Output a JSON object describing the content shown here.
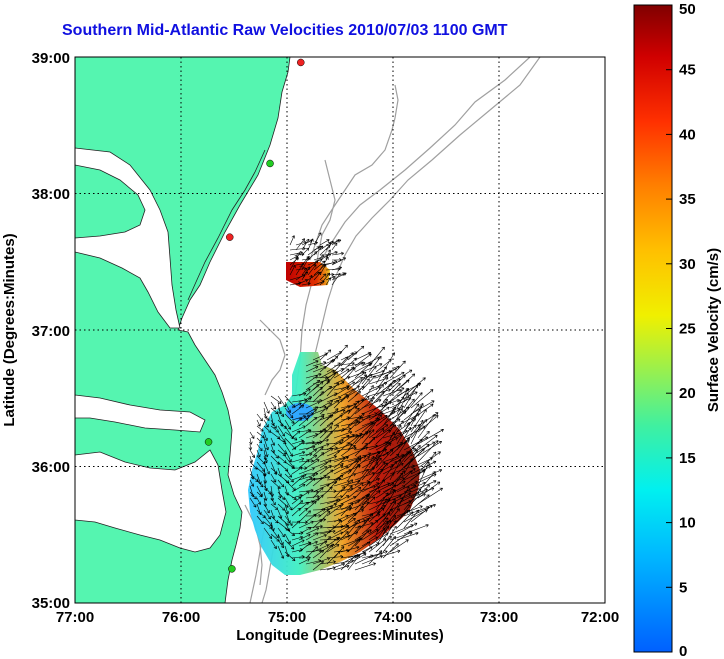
{
  "title": "Southern Mid-Atlantic Raw Velocities 2010/07/03 1100 GMT",
  "axes": {
    "x_label": "Longitude (Degrees:Minutes)",
    "y_label": "Latitude (Degrees:Minutes)",
    "x_ticks": [
      "77:00",
      "76:00",
      "75:00",
      "74:00",
      "73:00",
      "72:00"
    ],
    "y_ticks": [
      "39:00",
      "38:00",
      "37:00",
      "36:00",
      "35:00"
    ]
  },
  "colorbar": {
    "label": "Surface Velocity (cm/s)",
    "ticks": [
      "0",
      "5",
      "10",
      "15",
      "20",
      "25",
      "30",
      "35",
      "40",
      "45",
      "50"
    ],
    "min": 0,
    "max": 50
  },
  "colors": {
    "land": "#55f5b0",
    "title": "#1010e0",
    "contour": "#a0a0a0",
    "station_green": "#22cc22",
    "station_red": "#ee2222"
  },
  "extent": {
    "lon": [
      -77,
      -72
    ],
    "lat": [
      35,
      39
    ]
  },
  "stations": [
    {
      "lon": -74.87,
      "lat": 38.96,
      "color": "red"
    },
    {
      "lon": -75.16,
      "lat": 38.22,
      "color": "green"
    },
    {
      "lon": -75.54,
      "lat": 37.68,
      "color": "red"
    },
    {
      "lon": -75.74,
      "lat": 36.18,
      "color": "green"
    },
    {
      "lon": -75.52,
      "lat": 35.25,
      "color": "green"
    }
  ]
}
